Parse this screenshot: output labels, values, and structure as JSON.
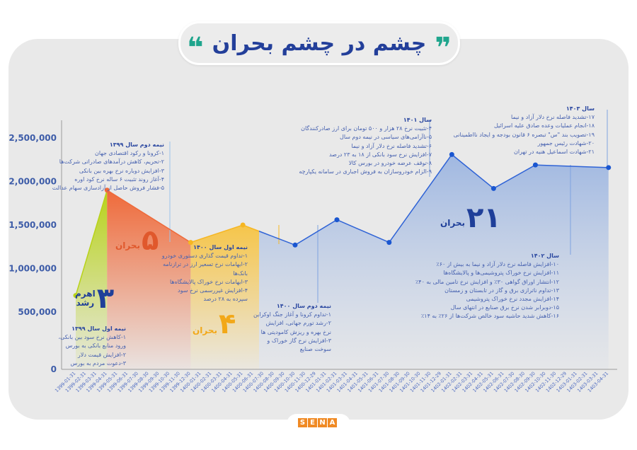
{
  "title": "چشم در چشم بحران",
  "title_quote_open": "❞",
  "title_quote_close": "❝",
  "logo": {
    "letters": [
      "S",
      "E",
      "N",
      "A"
    ]
  },
  "colors": {
    "title": "#233f9a",
    "accent": "#1fa58d",
    "line_blue": "#2f63d6",
    "orange": "#ee6a3a",
    "green": "#b8d21a",
    "yellow": "#f6b622",
    "text": "#4762b0"
  },
  "chart_data": {
    "type": "line",
    "title": "",
    "xlabel": "",
    "ylabel": "",
    "y_ticks": [
      "0",
      "500,000",
      "1,000,000",
      "1,500,000",
      "2,000,000",
      "2,500,000"
    ],
    "y_tick_values": [
      0,
      500000,
      1000000,
      1500000,
      2000000,
      2500000
    ],
    "ylim": [
      0,
      2500000
    ],
    "grid": false,
    "categories": [
      "1399-01-31",
      "1399-02-31",
      "1399-03-31",
      "1399-04-31",
      "1399-05-31",
      "1399-06-31",
      "1399-07-30",
      "1399-08-30",
      "1399-09-30",
      "1399-10-30",
      "1399-11-30",
      "1399-12-30",
      "1400-01-31",
      "1400-02-31",
      "1400-03-31",
      "1400-04-31",
      "1400-05-31",
      "1400-06-31",
      "1400-07-30",
      "1400-08-30",
      "1400-09-30",
      "1400-10-30",
      "1400-11-30",
      "1400-12-29",
      "1401-01-31",
      "1401-02-31",
      "1401-03-31",
      "1401-04-31",
      "1401-05-31",
      "1401-06-31",
      "1401-07-30",
      "1401-08-30",
      "1401-09-30",
      "1401-10-30",
      "1401-11-30",
      "1401-12-29",
      "1402-01-31",
      "1402-02-31",
      "1402-03-31",
      "1402-04-31",
      "1402-05-31",
      "1402-06-31",
      "1402-07-30",
      "1402-08-30",
      "1402-09-30",
      "1402-10-30",
      "1402-11-30",
      "1402-12-29",
      "1403-01-31",
      "1403-02-31",
      "1403-03-31",
      "1403-04-31"
    ],
    "points": [
      {
        "x": "1399-01-31",
        "y": 690000
      },
      {
        "x": "1399-04-31",
        "y": 1900000
      },
      {
        "x": "1399-12-30",
        "y": 1300000
      },
      {
        "x": "1400-05-31",
        "y": 1500000
      },
      {
        "x": "1400-10-30",
        "y": 1270000
      },
      {
        "x": "1401-02-31",
        "y": 1560000
      },
      {
        "x": "1401-07-30",
        "y": 1300000
      },
      {
        "x": "1402-01-31",
        "y": 2310000
      },
      {
        "x": "1402-05-31",
        "y": 1920000
      },
      {
        "x": "1402-09-30",
        "y": 2190000
      },
      {
        "x": "1403-04-31",
        "y": 2160000
      }
    ]
  },
  "badges": {
    "growth": {
      "number": "۳",
      "label1": "اهرم",
      "label2": "رشد"
    },
    "crisis5": {
      "number": "۵",
      "label": "بحران"
    },
    "crisis4": {
      "number": "۴",
      "label": "بحران"
    },
    "crisis21": {
      "number": "۲۱",
      "label": "بحران"
    }
  },
  "annotations": {
    "h1_1399": {
      "heading": "نیمه اول سال ۱۳۹۹",
      "items": [
        "۱-کاهش نرخ سود بین بانکی،",
        "ورود منابع بانکی به بورس",
        "۲-افزایش قیمت دلار",
        "۳-دعوت مردم به بورس"
      ]
    },
    "h2_1399": {
      "heading": "نیمه دوم سال ۱۳۹۹",
      "items": [
        "۱-کرونا و رکود اقتصادی جهان",
        "۲-تحریم، کاهش درآمدهای صادراتی شرکت‌ها",
        "۳-افزایش دوباره نرخ بهره بین بانکی",
        "۴-آغاز روند تثبیت ۶ ساله نرخ کود اوره",
        "۵-فشار فروش حاصل از آزادسازی سهام عدالت"
      ]
    },
    "h1_1400": {
      "heading": "نیمه اول سال ۱۴۰۰",
      "items": [
        "۱-تداوم قیمت گذاری دستوری خودرو",
        "۲-ابهامات نرخ تسعیر ارز در ترازنامه",
        "بانک‌ها",
        "۳-ابهامات نرخ خوراک پالایشگاه‌ها",
        "۴-افزایش غیررسمی نرخ سود",
        "سپرده به ۲۸ درصد"
      ]
    },
    "h2_1400": {
      "heading": "نیمه دوم سال ۱۴۰۰",
      "items": [
        "۱-تداوم کرونا و آغاز جنگ اوکراین",
        "۲-رشد تورم جهانی، افزایش",
        "نرخ بهره و ریزش کامودیتی ها",
        "۳-افزایش نرخ گاز خوراک و",
        "سوخت صنایع"
      ]
    },
    "y1401": {
      "heading": "سال ۱۴۰۱",
      "items": [
        "۴-تثبیت نرخ ۲۸ هزار و ۵۰۰ تومان برای ارز صادرکنندگان",
        "۵-ناآرامی‌های سیاسی در نیمه دوم سال",
        "۶-تشدید فاصله نرخ دلار آزاد و نیما",
        "۷-افزایش نرخ سود بانکی از ۱۸ به ۲۳ درصد",
        "۸-توقف عرضه خودرو در بورس کالا",
        "۹-الزام خودروسازان به فروش اجباری در سامانه یکپارچه"
      ]
    },
    "y1402": {
      "heading": "سال ۱۴۰۲",
      "items": [
        "۱۰-افزایش فاصله نرخ دلار آزاد و نیما به بیش از ۶۰٪",
        "۱۱-افزایش نرخ خوراک پتروشیمی‌ها و پالایشگاه‌ها",
        "۱۲-انتشار اوراق گواهی ۳۰٪ و افزایش نرخ تامین مالی به ۴۰٪",
        "۱۳-تداوم ناترازی برق و گاز در تابستان و زمستان",
        "۱۴-افزایش مجدد نرخ خوراک پتروشیمی",
        "۱۵-دوبرابر شدن نرخ برق صنایع در انتهای سال",
        "۱۶-کاهش شدید حاشیه سود خالص شرکت‌ها از ۲۶٪ به ۱۴٪"
      ]
    },
    "y1403": {
      "heading": "سال ۱۴۰۳",
      "items": [
        "۱۷-تشدید فاصله نرخ دلار آزاد و نیما",
        "۱۸-انجام عملیات وعده صادق علیه اسرائیل",
        "۱۹-تصویب بند \"س\" تبصره ۶ قانون بودجه و ایجاد نااطمینانی",
        "۲۰-شهادت رئیس جمهور",
        "۲۱-شهادت اسماعیل هنیه در تهران"
      ]
    }
  }
}
